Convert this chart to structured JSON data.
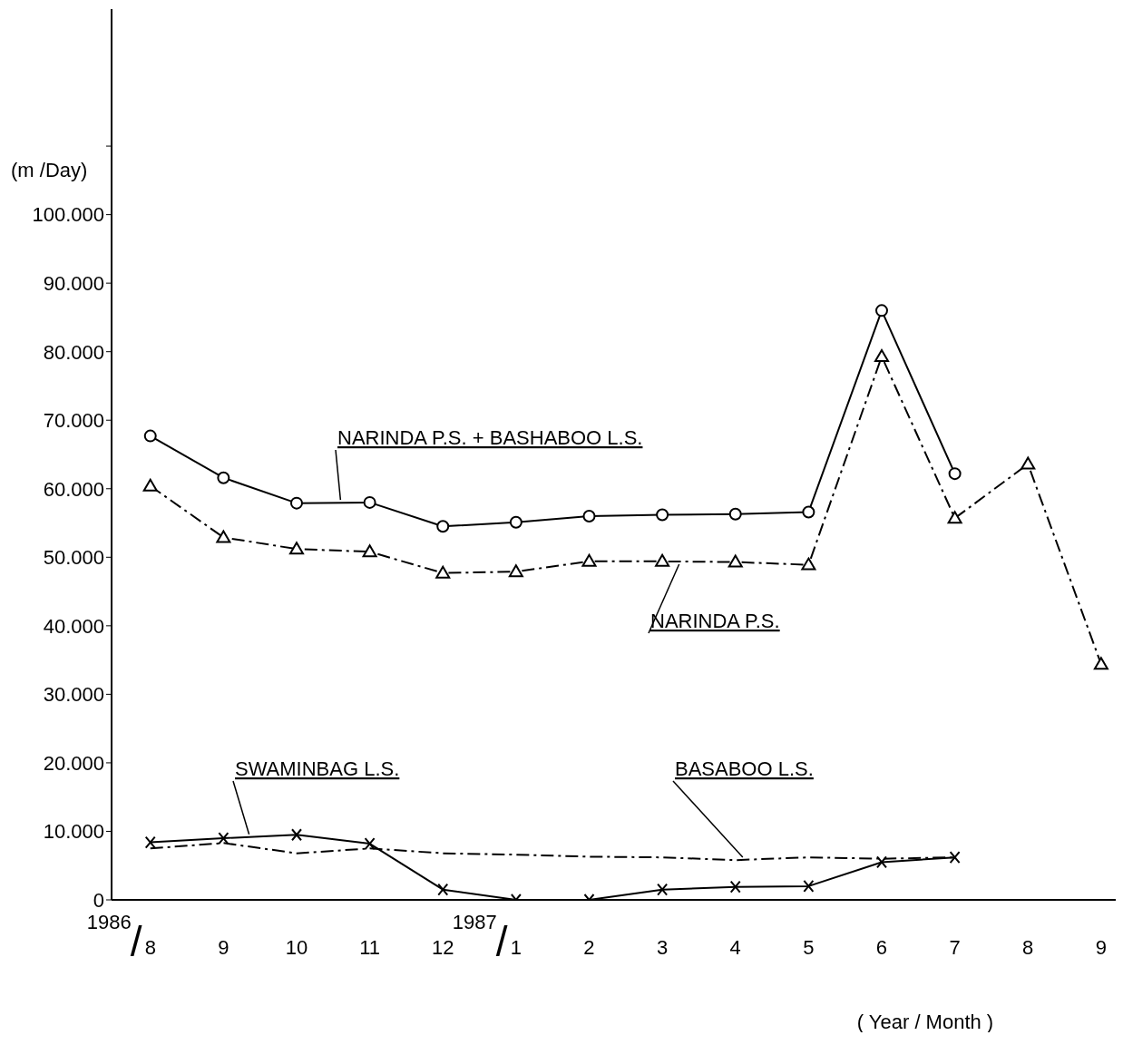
{
  "chart_data": {
    "type": "line",
    "xlabel": "( Year / Month )",
    "ylabel": "(m /Day)",
    "categories": [
      "1986/8",
      "9",
      "10",
      "11",
      "12",
      "1987/1",
      "2",
      "3",
      "4",
      "5",
      "6",
      "7",
      "8",
      "9"
    ],
    "series": [
      {
        "name": "NARINDA P.S. + BASHABOO L.S.",
        "color": "#000000",
        "marker": "circle",
        "line_style": "solid",
        "values": [
          67700,
          61600,
          57900,
          58000,
          54500,
          55100,
          56000,
          56200,
          56300,
          56600,
          86000,
          62200,
          null,
          null
        ]
      },
      {
        "name": "NARINDA P.S.",
        "color": "#000000",
        "marker": "triangle",
        "line_style": "dashed",
        "values": [
          60400,
          52900,
          51200,
          50800,
          47700,
          47900,
          49400,
          49400,
          49300,
          48900,
          79300,
          55700,
          63600,
          34400
        ]
      },
      {
        "name": "SWAMINBAG L.S.",
        "color": "#000000",
        "marker": "cross",
        "line_style": "solid",
        "values": [
          8400,
          9000,
          9500,
          8200,
          1500,
          0,
          0,
          1500,
          1900,
          2000,
          5500,
          6200,
          null,
          null
        ]
      },
      {
        "name": "BASABOO L.S.",
        "color": "#000000",
        "marker": "none",
        "line_style": "dashed",
        "values": [
          7500,
          8300,
          6800,
          7500,
          6800,
          6600,
          6300,
          6200,
          5800,
          6200,
          6000,
          6200,
          null,
          null
        ]
      }
    ],
    "ylim": [
      0,
      130000
    ],
    "yticks": [
      {
        "value": 0,
        "label": "0"
      },
      {
        "value": 10000,
        "label": "10.000"
      },
      {
        "value": 20000,
        "label": "20.000"
      },
      {
        "value": 30000,
        "label": "30.000"
      },
      {
        "value": 40000,
        "label": "40.000"
      },
      {
        "value": 50000,
        "label": "50.000"
      },
      {
        "value": 60000,
        "label": "60.000"
      },
      {
        "value": 70000,
        "label": "70.000"
      },
      {
        "value": 80000,
        "label": "80.000"
      },
      {
        "value": 90000,
        "label": "90.000"
      },
      {
        "value": 100000,
        "label": "100.000"
      },
      {
        "value": 110000,
        "label": null
      }
    ],
    "grid": false,
    "legend": false
  }
}
